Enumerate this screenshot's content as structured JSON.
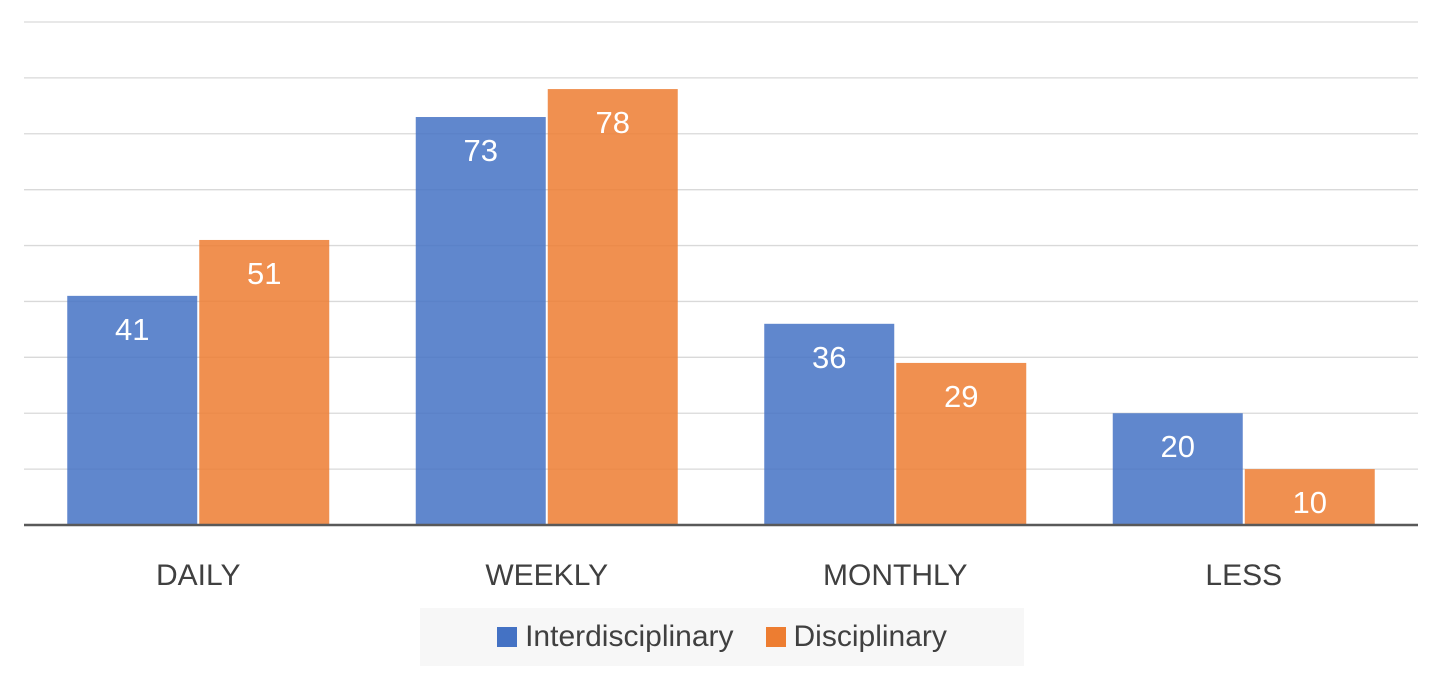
{
  "chart_data": {
    "type": "bar",
    "categories": [
      "DAILY",
      "WEEKLY",
      "MONTHLY",
      "LESS"
    ],
    "series": [
      {
        "name": "Interdisciplinary",
        "values": [
          41,
          73,
          36,
          20
        ],
        "color": "#4472c4"
      },
      {
        "name": "Disciplinary",
        "values": [
          51,
          78,
          29,
          10
        ],
        "color": "#ed7d31"
      }
    ],
    "ylim": [
      0,
      90
    ],
    "grid": true,
    "data_labels": true,
    "legend": "bottom"
  }
}
